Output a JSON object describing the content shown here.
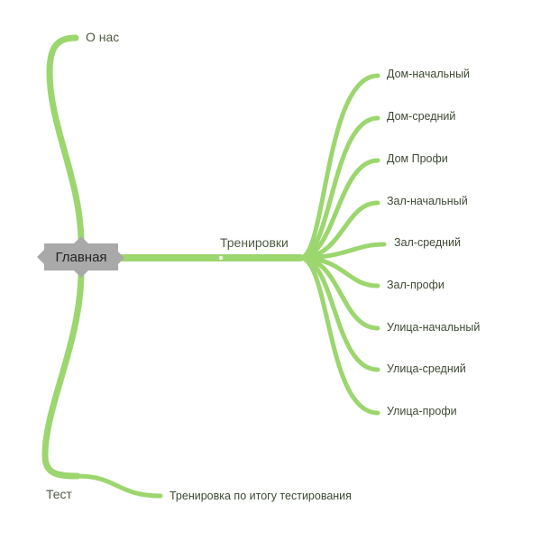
{
  "colors": {
    "branch": "#9cd66e",
    "root_bg": "#a9a9a9",
    "text": "#3f4a33"
  },
  "mindmap": {
    "root": "Главная",
    "about": "О нас",
    "trainings": {
      "label": "Тренировки",
      "children": [
        "Дом-начальный",
        "Дом-средний",
        "Дом Профи",
        "Зал-начальный",
        "Зал-средний",
        "Зал-профи",
        "Улица-начальный",
        "Улица-средний",
        "Улица-профи"
      ]
    },
    "test": {
      "label": "Тест",
      "child": "Тренировка по итогу тестирования"
    }
  }
}
